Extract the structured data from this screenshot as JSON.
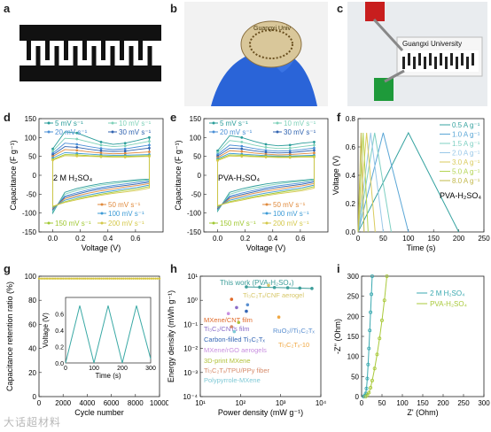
{
  "labels": {
    "a": "a",
    "b": "b",
    "c": "c",
    "d": "d",
    "e": "e",
    "f": "f",
    "g": "g",
    "h": "h",
    "i": "i"
  },
  "photo_b": {
    "text": "Guangxi Univ"
  },
  "photo_c": {
    "text": "Guangxi University"
  },
  "watermark": "大话超材料",
  "chart_data": [
    {
      "panel": "d",
      "type": "line",
      "xlabel": "Voltage (V)",
      "ylabel": "Capacitance (F g⁻¹)",
      "xlim": [
        -0.1,
        0.8
      ],
      "ylim": [
        -150,
        150
      ],
      "xticks": [
        "0.0",
        "0.2",
        "0.4",
        "0.6"
      ],
      "yticks": [
        "-150",
        "-100",
        "-50",
        "0",
        "50",
        "100",
        "150"
      ],
      "annotation": "2 M H₂SO₄",
      "legend_top": [
        "5 mV s⁻¹",
        "10 mV s⁻¹",
        "20 mV s⁻¹",
        "30 mV s⁻¹"
      ],
      "legend_bottom": [
        "50 mV s⁻¹",
        "100 mV s⁻¹",
        "150 mV s⁻¹",
        "200 mV s⁻¹"
      ],
      "series": [
        {
          "rate": 5,
          "upper": [
            70,
            115,
            112,
            100,
            88,
            82,
            85,
            92,
            100
          ],
          "lower": [
            -100,
            -45,
            -35,
            -28,
            -22,
            -18,
            -15,
            -12,
            -10
          ]
        },
        {
          "rate": 10,
          "upper": [
            64,
            98,
            96,
            88,
            80,
            76,
            78,
            84,
            90
          ],
          "lower": [
            -96,
            -50,
            -40,
            -32,
            -26,
            -22,
            -18,
            -15,
            -12
          ]
        },
        {
          "rate": 20,
          "upper": [
            58,
            85,
            82,
            76,
            71,
            68,
            70,
            75,
            80
          ],
          "lower": [
            -92,
            -55,
            -46,
            -38,
            -32,
            -27,
            -23,
            -19,
            -15
          ]
        },
        {
          "rate": 30,
          "upper": [
            54,
            76,
            74,
            69,
            65,
            63,
            64,
            68,
            72
          ],
          "lower": [
            -90,
            -58,
            -50,
            -42,
            -36,
            -31,
            -27,
            -23,
            -18
          ]
        },
        {
          "rate": 50,
          "upper": [
            50,
            68,
            66,
            62,
            59,
            57,
            58,
            60,
            62
          ],
          "lower": [
            -88,
            -62,
            -54,
            -47,
            -41,
            -36,
            -31,
            -27,
            -22
          ]
        },
        {
          "rate": 100,
          "upper": [
            46,
            60,
            58,
            56,
            54,
            53,
            53,
            54,
            55
          ],
          "lower": [
            -86,
            -66,
            -58,
            -52,
            -46,
            -41,
            -36,
            -32,
            -26
          ]
        },
        {
          "rate": 150,
          "upper": [
            42,
            55,
            54,
            52,
            51,
            50,
            50,
            51,
            52
          ],
          "lower": [
            -84,
            -70,
            -62,
            -56,
            -50,
            -45,
            -40,
            -36,
            -30
          ]
        },
        {
          "rate": 200,
          "upper": [
            40,
            52,
            51,
            50,
            49,
            48,
            48,
            49,
            50
          ],
          "lower": [
            -82,
            -72,
            -65,
            -58,
            -53,
            -48,
            -44,
            -40,
            -34
          ]
        }
      ]
    },
    {
      "panel": "e",
      "type": "line",
      "xlabel": "Voltage (V)",
      "ylabel": "Capacitance (F g⁻¹)",
      "xlim": [
        -0.1,
        0.8
      ],
      "ylim": [
        -150,
        150
      ],
      "xticks": [
        "0.0",
        "0.2",
        "0.4",
        "0.6"
      ],
      "yticks": [
        "-150",
        "-100",
        "-50",
        "0",
        "50",
        "100",
        "150"
      ],
      "annotation": "PVA-H₂SO₄",
      "legend_top": [
        "5 mV s⁻¹",
        "10 mV s⁻¹",
        "20 mV s⁻¹",
        "30 mV s⁻¹"
      ],
      "legend_bottom": [
        "50 mV s⁻¹",
        "100 mV s⁻¹",
        "150 mV s⁻¹",
        "200 mV s⁻¹"
      ],
      "series": [
        {
          "rate": 5,
          "upper": [
            65,
            105,
            100,
            90,
            82,
            78,
            80,
            85,
            88
          ],
          "lower": [
            -95,
            -45,
            -36,
            -29,
            -23,
            -19,
            -16,
            -13,
            -10
          ]
        },
        {
          "rate": 10,
          "upper": [
            60,
            92,
            88,
            80,
            74,
            71,
            72,
            76,
            80
          ],
          "lower": [
            -92,
            -50,
            -41,
            -34,
            -28,
            -23,
            -19,
            -16,
            -12
          ]
        },
        {
          "rate": 20,
          "upper": [
            55,
            80,
            77,
            71,
            66,
            64,
            65,
            68,
            72
          ],
          "lower": [
            -90,
            -55,
            -47,
            -40,
            -33,
            -28,
            -24,
            -20,
            -15
          ]
        },
        {
          "rate": 30,
          "upper": [
            51,
            72,
            70,
            65,
            61,
            59,
            60,
            63,
            66
          ],
          "lower": [
            -88,
            -58,
            -51,
            -44,
            -37,
            -32,
            -28,
            -24,
            -18
          ]
        },
        {
          "rate": 50,
          "upper": [
            47,
            65,
            63,
            59,
            56,
            54,
            55,
            57,
            59
          ],
          "lower": [
            -86,
            -62,
            -55,
            -48,
            -42,
            -37,
            -32,
            -28,
            -22
          ]
        },
        {
          "rate": 100,
          "upper": [
            44,
            58,
            56,
            54,
            52,
            51,
            51,
            52,
            53
          ],
          "lower": [
            -84,
            -66,
            -59,
            -53,
            -47,
            -42,
            -37,
            -33,
            -26
          ]
        },
        {
          "rate": 150,
          "upper": [
            41,
            54,
            53,
            51,
            50,
            49,
            49,
            50,
            50
          ],
          "lower": [
            -82,
            -70,
            -63,
            -57,
            -51,
            -46,
            -41,
            -37,
            -30
          ]
        },
        {
          "rate": 200,
          "upper": [
            39,
            51,
            50,
            49,
            48,
            47,
            47,
            48,
            48
          ],
          "lower": [
            -80,
            -72,
            -66,
            -59,
            -54,
            -49,
            -45,
            -41,
            -34
          ]
        }
      ]
    },
    {
      "panel": "f",
      "type": "line",
      "xlabel": "Time (s)",
      "ylabel": "Voltage (V)",
      "xlim": [
        0,
        250
      ],
      "ylim": [
        0,
        0.8
      ],
      "xticks": [
        "0",
        "50",
        "100",
        "150",
        "200",
        "250"
      ],
      "yticks": [
        "0.0",
        "0.2",
        "0.4",
        "0.6",
        "0.8"
      ],
      "annotation": "PVA-H₂SO₄",
      "series": [
        {
          "name": "0.5 A g⁻¹",
          "t_peak": 100,
          "t_end": 200
        },
        {
          "name": "1.0 A g⁻¹",
          "t_peak": 50,
          "t_end": 100
        },
        {
          "name": "1.5 A g⁻¹",
          "t_peak": 33,
          "t_end": 66
        },
        {
          "name": "2.0 A g⁻¹",
          "t_peak": 25,
          "t_end": 50
        },
        {
          "name": "3.0 A g⁻¹",
          "t_peak": 17,
          "t_end": 34
        },
        {
          "name": "5.0 A g⁻¹",
          "t_peak": 10,
          "t_end": 20
        },
        {
          "name": "8.0 A g⁻¹",
          "t_peak": 6,
          "t_end": 12
        }
      ],
      "vmax": 0.7
    },
    {
      "panel": "g",
      "type": "scatter",
      "xlabel": "Cycle number",
      "ylabel": "Capacitance retention ratio (%)",
      "xlim": [
        0,
        10000
      ],
      "ylim": [
        0,
        100
      ],
      "xticks": [
        "0",
        "2000",
        "4000",
        "6000",
        "8000",
        "10000"
      ],
      "yticks": [
        "0",
        "20",
        "40",
        "60",
        "80",
        "100"
      ],
      "retention": 98,
      "inset": {
        "xlabel": "Time (s)",
        "ylabel": "Voltage (V)",
        "xlim": [
          0,
          300
        ],
        "ylim": [
          0,
          0.8
        ],
        "xticks": [
          "0",
          "100",
          "200",
          "300"
        ],
        "yticks": [
          "0.0",
          "0.2",
          "0.4",
          "0.6"
        ],
        "t": [
          0,
          50,
          100,
          150,
          200,
          250,
          300
        ],
        "v": [
          0,
          0.7,
          0,
          0.7,
          0,
          0.7,
          0.05
        ]
      }
    },
    {
      "panel": "h",
      "type": "scatter",
      "xlabel": "Power density (mW g⁻¹)",
      "ylabel": "Energy density (mWh g⁻¹)",
      "xlog": true,
      "ylog": true,
      "xlim": [
        10,
        10000
      ],
      "ylim": [
        0.0001,
        10
      ],
      "xticks": [
        "10¹",
        "10²",
        "10³",
        "10⁴"
      ],
      "yticks": [
        "10⁻⁴",
        "10⁻³",
        "10⁻²",
        "10⁻¹",
        "10⁰",
        "10¹"
      ],
      "this_work": {
        "label": "This work (PVA-H₂SO₄)",
        "x": [
          140,
          300,
          700,
          1500,
          3000,
          6000
        ],
        "y": [
          3.6,
          3.5,
          3.4,
          3.3,
          3.2,
          3.1
        ]
      },
      "refs": [
        {
          "label": "Ti₃C₂Tₓ/CNF aerogel",
          "x": 500,
          "y": 4.2,
          "color": "#d7c76a"
        },
        {
          "label": "MXene/CNT film",
          "x": 60,
          "y": 1.1,
          "color": "#e06a2a"
        },
        {
          "label": "Ti₃C₂/CNTs film",
          "x": 80,
          "y": 0.5,
          "color": "#8a6bc8"
        },
        {
          "label": "RuO₂//Ti₃C₂Tₓ",
          "x": 150,
          "y": 0.65,
          "color": "#5a8fd0"
        },
        {
          "label": "Carbon-filled Ti₃C₂Tₓ",
          "x": 140,
          "y": 0.35,
          "color": "#3567b5"
        },
        {
          "label": "Ti₃C₂Tₓ-10",
          "x": 900,
          "y": 0.2,
          "color": "#f0a844"
        },
        {
          "label": "MXene/rGO aerogels",
          "x": 50,
          "y": 0.28,
          "color": "#c98fe0"
        },
        {
          "label": "3D-print MXene",
          "x": 90,
          "y": 0.12,
          "color": "#b1c23a"
        },
        {
          "label": "Ti₃C₂Tₓ/TPU/PPy fiber",
          "x": 60,
          "y": 0.08,
          "color": "#d68a6a"
        },
        {
          "label": "Polypyrrole-MXene",
          "x": 70,
          "y": 0.05,
          "color": "#7fc9d6"
        }
      ]
    },
    {
      "panel": "i",
      "type": "scatter",
      "xlabel": "Z' (Ohm)",
      "ylabel": "-Z'' (Ohm)",
      "xlim": [
        0,
        300
      ],
      "ylim": [
        0,
        300
      ],
      "xticks": [
        "0",
        "50",
        "100",
        "150",
        "200",
        "250",
        "300"
      ],
      "yticks": [
        "0",
        "50",
        "100",
        "150",
        "200",
        "250",
        "300"
      ],
      "series": [
        {
          "name": "2 M H₂SO₄",
          "x": [
            5,
            8,
            10,
            12,
            14,
            16,
            18,
            20,
            22,
            24,
            26
          ],
          "y": [
            0,
            3,
            8,
            20,
            45,
            80,
            120,
            165,
            210,
            255,
            300
          ]
        },
        {
          "name": "PVA-H₂SO₄",
          "x": [
            10,
            14,
            18,
            22,
            26,
            32,
            38,
            44,
            50,
            56,
            62
          ],
          "y": [
            0,
            4,
            10,
            22,
            40,
            70,
            105,
            145,
            190,
            240,
            300
          ]
        }
      ]
    }
  ],
  "colors": {
    "d_rates": [
      "#2a9d9a",
      "#7fd1b9",
      "#4a8fd6",
      "#3063b0",
      "#e08a3c",
      "#3d9bd6",
      "#a0c832",
      "#d4c84a"
    ],
    "f_rates": [
      "#36a3a0",
      "#5aa6d6",
      "#7fd0c3",
      "#9ac8e8",
      "#d9cb5d",
      "#b4d453",
      "#c2b84a"
    ],
    "i_series": [
      "#3aa9b0",
      "#a9c93a"
    ],
    "this_work": "#3d9e9a",
    "grid": "#d8d8d8"
  }
}
